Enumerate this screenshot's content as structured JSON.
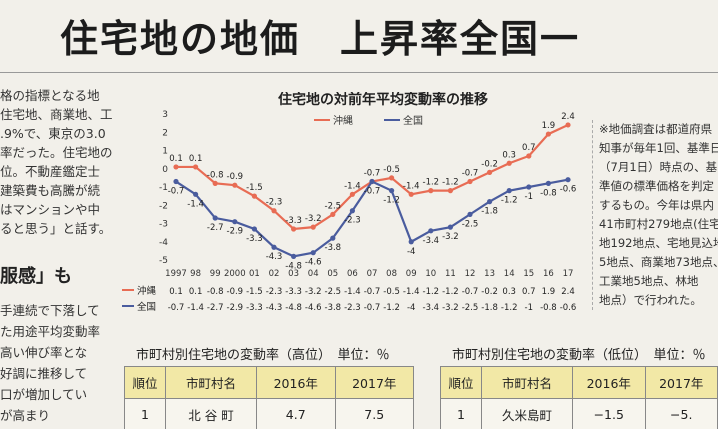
{
  "headline": "住宅地の地価　上昇率全国一",
  "left_text": [
    "格の指標となる地",
    "住宅地、商業地、工",
    ".9%で、東京の3.0",
    "率だった。住宅地の",
    "位。不動産鑑定士",
    "建築費も高騰が続",
    "はマンションや中",
    "ると思う」と話す。"
  ],
  "left_subhead": "服感」も",
  "left_text2": [
    "手連続で下落して",
    "た用途平均変動率",
    "高い伸び率とな",
    "好調に推移して",
    "口が増加してい",
    "が高まり"
  ],
  "right_text": [
    "※地価調査は都道府県",
    "知事が毎年1回、基準日",
    "（7月1日）時点の、基",
    "準値の標準価格を判定",
    "するもの。今年は県内",
    "41市町村279地点(住宅",
    "地192地点、宅地見込地",
    "5地点、商業地73地点、",
    "工業地5地点、林地",
    "地点）で行われた。"
  ],
  "chart_data": {
    "type": "line",
    "title": "住宅地の対前年平均変動率の推移",
    "x_labels": [
      "1997",
      "98",
      "99",
      "2000",
      "01",
      "02",
      "03",
      "04",
      "05",
      "06",
      "07",
      "08",
      "09",
      "10",
      "11",
      "12",
      "13",
      "14",
      "15",
      "16",
      "17"
    ],
    "ylim": [
      -5,
      3
    ],
    "y_ticks": [
      "3",
      "2",
      "1",
      "0",
      "-1",
      "-2",
      "-3",
      "-4",
      "-5"
    ],
    "series": [
      {
        "name": "沖縄",
        "color": "#e86c54",
        "values": [
          0.1,
          0.1,
          -0.8,
          -0.9,
          -1.5,
          -2.3,
          -3.3,
          -3.2,
          -2.5,
          -1.4,
          -0.7,
          -0.5,
          -1.4,
          -1.2,
          -1.2,
          -0.7,
          -0.2,
          0.3,
          0.7,
          1.9,
          2.4
        ],
        "labels": [
          "0.1",
          "0.1",
          "-0.8",
          "-0.9",
          "-1.5",
          "-2.3",
          "-3.3",
          "-3.2",
          "-2.5",
          "-1.4",
          "-0.7",
          "-0.5",
          "-1.4",
          "-1.2",
          "-1.2",
          "-0.7",
          "-0.2",
          "0.3",
          "0.7",
          "1.9",
          "2.4"
        ]
      },
      {
        "name": "全国",
        "color": "#4a5c9e",
        "values": [
          -0.7,
          -1.4,
          -2.7,
          -2.9,
          -3.3,
          -4.3,
          -4.8,
          -4.6,
          -3.8,
          -2.3,
          -0.7,
          -1.2,
          -4.0,
          -3.4,
          -3.2,
          -2.5,
          -1.8,
          -1.2,
          -1.0,
          -0.8,
          -0.6
        ],
        "labels": [
          "-0.7",
          "-1.4",
          "-2.7",
          "-2.9",
          "-3.3",
          "-4.3",
          "-4.8",
          "-4.6",
          "-3.8",
          "-2.3",
          "-0.7",
          "-1.2",
          "-4",
          "-3.4",
          "-3.2",
          "-2.5",
          "-1.8",
          "-1.2",
          "-1",
          "-0.8",
          "-0.6"
        ]
      }
    ],
    "table_rows": [
      {
        "name": "沖縄",
        "values": "0.1  0.1 -0.8 -0.9 -1.5 -2.3 -3.3 -3.2 -2.5 -1.4 -0.7 -0.5 -1.4 -1.2 -1.2 -0.7 -0.2  0.3  0.7  1.9  2.4"
      },
      {
        "name": "全国",
        "values": "-0.7 -1.4 -2.7 -2.9 -3.3 -4.3 -4.8 -4.6 -3.8 -2.3 -0.7 -1.2  -4  -3.4 -3.2 -2.5 -1.8 -1.2  -1  -0.8 -0.6"
      }
    ]
  },
  "table_high": {
    "title": "市町村別住宅地の変動率（高位）　単位：％",
    "headers": [
      "順位",
      "市町村名",
      "2016年",
      "2017年"
    ],
    "row": {
      "rank": "1",
      "name": "北 谷 町",
      "y2016": "4.7",
      "y2017": "7.5"
    }
  },
  "table_low": {
    "title": "市町村別住宅地の変動率（低位）　単位：％",
    "headers": [
      "順位",
      "市町村名",
      "2016年",
      "2017年"
    ],
    "row": {
      "rank": "1",
      "name": "久米島町",
      "y2016": "−1.5",
      "y2017": "−5."
    }
  }
}
